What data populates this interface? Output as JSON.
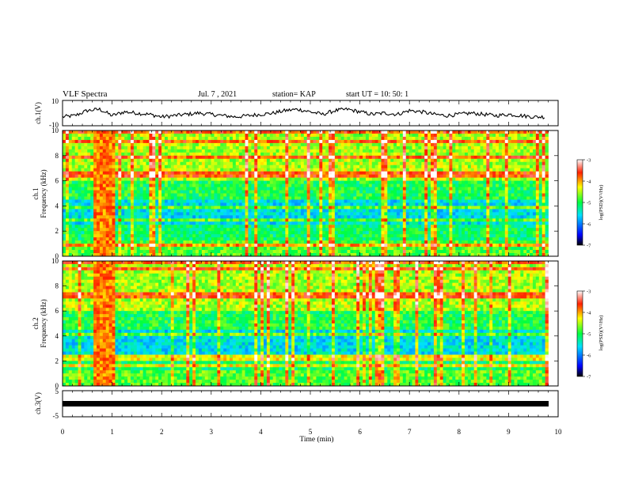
{
  "header": {
    "title": "VLF Spectra",
    "date": "Jul. 7 , 2021",
    "station": "station= KAP",
    "start": "start UT = 10: 50: 1"
  },
  "chart_data": [
    {
      "type": "line",
      "ylabel": "ch.1(V)",
      "ylim": [
        -10,
        10
      ],
      "yticks": [
        "10",
        "-10"
      ],
      "xlim": [
        0,
        10
      ],
      "description_series": "ch.1 waveform amplitude vs time",
      "series": [
        {
          "x": [
            0,
            0.25,
            0.5,
            0.75,
            1,
            1.25,
            1.5,
            1.75,
            2,
            2.25,
            2.5,
            2.75,
            3,
            3.25,
            3.5,
            3.75,
            4,
            4.25,
            4.5,
            4.75,
            5,
            5.25,
            5.5,
            5.75,
            6,
            6.25,
            6.5,
            6.75,
            7,
            7.25,
            7.5,
            7.75,
            8,
            8.25,
            8.5,
            8.75,
            9,
            9.25,
            9.5,
            9.75
          ],
          "values": [
            -3,
            -2,
            2,
            3,
            -2,
            1,
            0,
            -1,
            -3,
            -2,
            -1,
            0,
            -1,
            -2,
            -3,
            -2,
            -1,
            0,
            2,
            3,
            1,
            -1,
            2,
            3,
            1,
            -1,
            0,
            -1,
            2,
            1,
            -1,
            -2,
            -1,
            0,
            -1,
            -2,
            -1,
            -2,
            -3,
            -3
          ]
        }
      ]
    },
    {
      "type": "heatmap",
      "ylabel": "ch.1 Frequency (kHz)",
      "ylim": [
        0,
        10
      ],
      "yticks": [
        "0",
        "2",
        "4",
        "6",
        "8",
        "10"
      ],
      "xlim": [
        0,
        10
      ],
      "colorbar": {
        "label": "log(PSD)(V²/Hz)",
        "range": [
          -7,
          -3
        ],
        "ticks": [
          "-3",
          "-4",
          "-5",
          "-6",
          "-7"
        ]
      }
    },
    {
      "type": "heatmap",
      "ylabel": "ch.2 Frequency (kHz)",
      "ylim": [
        0,
        10
      ],
      "yticks": [
        "0",
        "2",
        "4",
        "6",
        "8",
        "10"
      ],
      "xlim": [
        0,
        10
      ],
      "colorbar": {
        "label": "log(PSD)(V²/Hz)",
        "range": [
          -7,
          -3
        ],
        "ticks": [
          "-3",
          "-4",
          "-5",
          "-6",
          "-7"
        ]
      }
    },
    {
      "type": "line",
      "ylabel": "ch.3(V)",
      "ylim": [
        -5,
        5
      ],
      "yticks": [
        "5",
        "0",
        "-5"
      ],
      "xlim": [
        0,
        10
      ],
      "xticks": [
        "0",
        "1",
        "2",
        "3",
        "4",
        "5",
        "6",
        "7",
        "8",
        "9",
        "10"
      ],
      "xlabel": "Time (min)",
      "series": [
        {
          "x": [
            0,
            9.8
          ],
          "values": [
            0,
            0
          ]
        }
      ]
    }
  ]
}
